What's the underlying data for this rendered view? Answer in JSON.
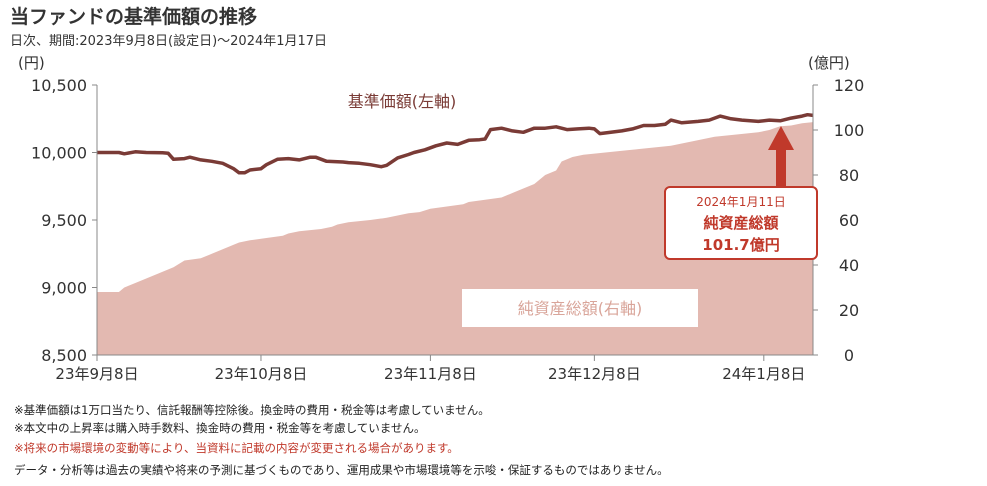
{
  "header": {
    "title": "当ファンドの基準価額の推移",
    "subtitle": "日次、期間:2023年9月8日(設定日)〜2024年1月17日"
  },
  "chart_data": {
    "type": "area+line",
    "left_unit": "(円)",
    "right_unit": "(億円)",
    "left_ticks": [
      "10,500",
      "10,000",
      "9,500",
      "9,000",
      "8,500"
    ],
    "left_tick_values": [
      10500,
      10000,
      9500,
      9000,
      8500
    ],
    "right_ticks": [
      "120",
      "100",
      "80",
      "60",
      "40",
      "20",
      "0"
    ],
    "right_tick_values": [
      120,
      100,
      80,
      60,
      40,
      20,
      0
    ],
    "x_ticks": [
      "23年9月8日",
      "23年10月8日",
      "23年11月8日",
      "23年12月8日",
      "24年1月8日"
    ],
    "x_tick_days": [
      0,
      30,
      61,
      91,
      122
    ],
    "left_ylim": [
      8500,
      10500
    ],
    "right_ylim": [
      0,
      120
    ],
    "xlim_days": [
      0,
      131
    ],
    "series": [
      {
        "name": "基準価額(左軸)",
        "axis": "left",
        "color": "#7a3b36",
        "points": [
          [
            0,
            10000
          ],
          [
            4,
            10000
          ],
          [
            5,
            9990
          ],
          [
            7,
            10005
          ],
          [
            9,
            10000
          ],
          [
            12,
            9998
          ],
          [
            13,
            9995
          ],
          [
            14,
            9950
          ],
          [
            16,
            9955
          ],
          [
            17,
            9965
          ],
          [
            19,
            9945
          ],
          [
            21,
            9935
          ],
          [
            23,
            9920
          ],
          [
            25,
            9880
          ],
          [
            26,
            9850
          ],
          [
            27,
            9850
          ],
          [
            28,
            9870
          ],
          [
            30,
            9880
          ],
          [
            31,
            9910
          ],
          [
            33,
            9950
          ],
          [
            35,
            9955
          ],
          [
            37,
            9945
          ],
          [
            39,
            9965
          ],
          [
            40,
            9965
          ],
          [
            42,
            9935
          ],
          [
            45,
            9930
          ],
          [
            46,
            9925
          ],
          [
            48,
            9920
          ],
          [
            50,
            9910
          ],
          [
            52,
            9895
          ],
          [
            53,
            9905
          ],
          [
            55,
            9960
          ],
          [
            57,
            9985
          ],
          [
            58,
            10000
          ],
          [
            60,
            10020
          ],
          [
            62,
            10050
          ],
          [
            64,
            10070
          ],
          [
            66,
            10060
          ],
          [
            68,
            10090
          ],
          [
            70,
            10095
          ],
          [
            71,
            10100
          ],
          [
            72,
            10170
          ],
          [
            74,
            10180
          ],
          [
            76,
            10160
          ],
          [
            78,
            10150
          ],
          [
            80,
            10180
          ],
          [
            82,
            10180
          ],
          [
            84,
            10190
          ],
          [
            86,
            10170
          ],
          [
            88,
            10175
          ],
          [
            90,
            10180
          ],
          [
            91,
            10175
          ],
          [
            92,
            10140
          ],
          [
            94,
            10150
          ],
          [
            96,
            10160
          ],
          [
            98,
            10175
          ],
          [
            100,
            10200
          ],
          [
            102,
            10200
          ],
          [
            104,
            10210
          ],
          [
            105,
            10240
          ],
          [
            107,
            10220
          ],
          [
            110,
            10230
          ],
          [
            112,
            10240
          ],
          [
            114,
            10270
          ],
          [
            116,
            10250
          ],
          [
            118,
            10240
          ],
          [
            121,
            10230
          ],
          [
            123,
            10240
          ],
          [
            125,
            10235
          ],
          [
            127,
            10255
          ],
          [
            129,
            10270
          ],
          [
            130,
            10280
          ],
          [
            131,
            10275
          ]
        ]
      },
      {
        "name": "純資産総額(右軸)",
        "axis": "right",
        "color": "#e3b9b1",
        "points": [
          [
            0,
            28
          ],
          [
            4,
            28
          ],
          [
            5,
            30
          ],
          [
            7,
            32
          ],
          [
            10,
            35
          ],
          [
            12,
            37
          ],
          [
            14,
            39
          ],
          [
            16,
            42
          ],
          [
            19,
            43
          ],
          [
            21,
            45
          ],
          [
            23,
            47
          ],
          [
            25,
            49
          ],
          [
            26,
            50
          ],
          [
            28,
            51
          ],
          [
            31,
            52
          ],
          [
            34,
            53
          ],
          [
            35,
            54
          ],
          [
            37,
            55
          ],
          [
            41,
            56
          ],
          [
            43,
            57
          ],
          [
            44,
            58
          ],
          [
            46,
            59
          ],
          [
            50,
            60
          ],
          [
            53,
            61
          ],
          [
            55,
            62
          ],
          [
            57,
            63
          ],
          [
            59,
            63.5
          ],
          [
            61,
            65
          ],
          [
            64,
            66
          ],
          [
            67,
            67
          ],
          [
            68,
            68
          ],
          [
            71,
            69
          ],
          [
            74,
            70
          ],
          [
            76,
            72
          ],
          [
            78,
            74
          ],
          [
            80,
            76
          ],
          [
            82,
            80
          ],
          [
            84,
            82
          ],
          [
            85,
            86
          ],
          [
            87,
            88
          ],
          [
            89,
            89
          ],
          [
            91,
            89.5
          ],
          [
            93,
            90
          ],
          [
            95,
            90.5
          ],
          [
            97,
            91
          ],
          [
            99,
            91.5
          ],
          [
            101,
            92
          ],
          [
            103,
            92.5
          ],
          [
            105,
            93
          ],
          [
            107,
            94
          ],
          [
            109,
            95
          ],
          [
            111,
            96
          ],
          [
            113,
            97
          ],
          [
            115,
            97.5
          ],
          [
            117,
            98
          ],
          [
            119,
            98.5
          ],
          [
            121,
            99
          ],
          [
            123,
            100
          ],
          [
            125,
            101.7
          ],
          [
            127,
            102
          ],
          [
            129,
            103
          ],
          [
            131,
            103.5
          ]
        ]
      }
    ],
    "annotation": {
      "date": "2024年1月11日",
      "label": "純資産総額",
      "value": "101.7億円"
    }
  },
  "notes": [
    "※基準価額は1万口当たり、信託報酬等控除後。換金時の費用・税金等は考慮していません。",
    "※本文中の上昇率は購入時手数料、換金時の費用・税金等を考慮していません。",
    "※将来の市場環境の変動等により、当資料に記載の内容が変更される場合があります。",
    "データ・分析等は過去の実績や将来の予測に基づくものであり、運用成果や市場環境等を示唆・保証するものではありません。"
  ]
}
